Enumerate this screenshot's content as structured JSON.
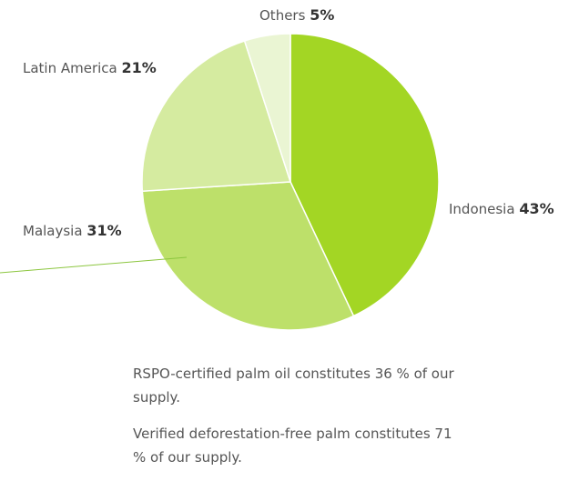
{
  "chart_data": {
    "type": "pie",
    "categories": [
      "Indonesia",
      "Malaysia",
      "Latin America",
      "Others"
    ],
    "values": [
      43,
      31,
      21,
      5
    ],
    "value_labels": [
      "43%",
      "31%",
      "21%",
      "5%"
    ],
    "colors": [
      "#a3d624",
      "#bde06a",
      "#d5eba0",
      "#eaf5d3"
    ]
  },
  "notes": [
    "RSPO-certified palm oil constitutes 36 % of our supply.",
    "Verified deforestation-free palm constitutes 71 % of our supply."
  ]
}
